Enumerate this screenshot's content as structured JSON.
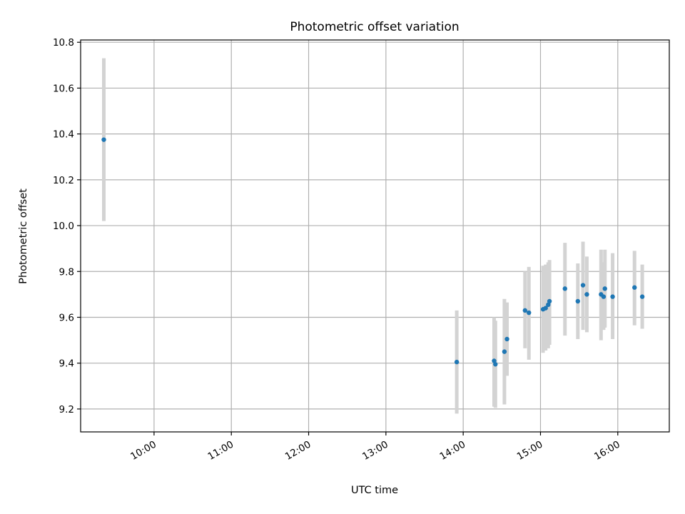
{
  "chart_data": {
    "type": "scatter",
    "title": "Photometric offset variation",
    "xlabel": "UTC time",
    "ylabel": "Photometric offset",
    "x_axis": {
      "type": "time",
      "ticks": [
        "10:00",
        "11:00",
        "12:00",
        "13:00",
        "14:00",
        "15:00",
        "16:00"
      ],
      "range": [
        "09:03",
        "16:40"
      ]
    },
    "y_axis": {
      "ticks": [
        9.2,
        9.4,
        9.6,
        9.8,
        10.0,
        10.2,
        10.4,
        10.6,
        10.8
      ],
      "tick_labels": [
        "9.2",
        "9.4",
        "9.6",
        "9.8",
        "10.0",
        "10.2",
        "10.4",
        "10.6",
        "10.8"
      ],
      "ylim": [
        9.1,
        10.81
      ]
    },
    "grid": true,
    "colors": {
      "points": "#1f77b4",
      "errorbars": "#d3d3d3",
      "grid": "#b0b0b0"
    },
    "points": [
      {
        "x": "09:21",
        "y": 10.375,
        "ylo": 10.02,
        "yhi": 10.73
      },
      {
        "x": "13:55",
        "y": 9.405,
        "ylo": 9.18,
        "yhi": 9.63
      },
      {
        "x": "14:24",
        "y": 9.41,
        "ylo": 9.21,
        "yhi": 9.6
      },
      {
        "x": "14:25",
        "y": 9.395,
        "ylo": 9.205,
        "yhi": 9.585
      },
      {
        "x": "14:32",
        "y": 9.45,
        "ylo": 9.22,
        "yhi": 9.68
      },
      {
        "x": "14:34",
        "y": 9.505,
        "ylo": 9.345,
        "yhi": 9.665
      },
      {
        "x": "14:48",
        "y": 9.63,
        "ylo": 9.465,
        "yhi": 9.8
      },
      {
        "x": "14:51",
        "y": 9.62,
        "ylo": 9.415,
        "yhi": 9.82
      },
      {
        "x": "15:02",
        "y": 9.635,
        "ylo": 9.445,
        "yhi": 9.825
      },
      {
        "x": "15:04",
        "y": 9.64,
        "ylo": 9.455,
        "yhi": 9.83
      },
      {
        "x": "15:06",
        "y": 9.655,
        "ylo": 9.465,
        "yhi": 9.84
      },
      {
        "x": "15:07",
        "y": 9.67,
        "ylo": 9.48,
        "yhi": 9.85
      },
      {
        "x": "15:19",
        "y": 9.725,
        "ylo": 9.52,
        "yhi": 9.925
      },
      {
        "x": "15:29",
        "y": 9.67,
        "ylo": 9.505,
        "yhi": 9.835
      },
      {
        "x": "15:33",
        "y": 9.74,
        "ylo": 9.545,
        "yhi": 9.93
      },
      {
        "x": "15:36",
        "y": 9.7,
        "ylo": 9.535,
        "yhi": 9.865
      },
      {
        "x": "15:47",
        "y": 9.7,
        "ylo": 9.5,
        "yhi": 9.895
      },
      {
        "x": "15:49",
        "y": 9.69,
        "ylo": 9.545,
        "yhi": 9.84
      },
      {
        "x": "15:50",
        "y": 9.725,
        "ylo": 9.555,
        "yhi": 9.895
      },
      {
        "x": "15:56",
        "y": 9.69,
        "ylo": 9.505,
        "yhi": 9.88
      },
      {
        "x": "16:13",
        "y": 9.73,
        "ylo": 9.565,
        "yhi": 9.89
      },
      {
        "x": "16:19",
        "y": 9.69,
        "ylo": 9.55,
        "yhi": 9.83
      }
    ]
  }
}
